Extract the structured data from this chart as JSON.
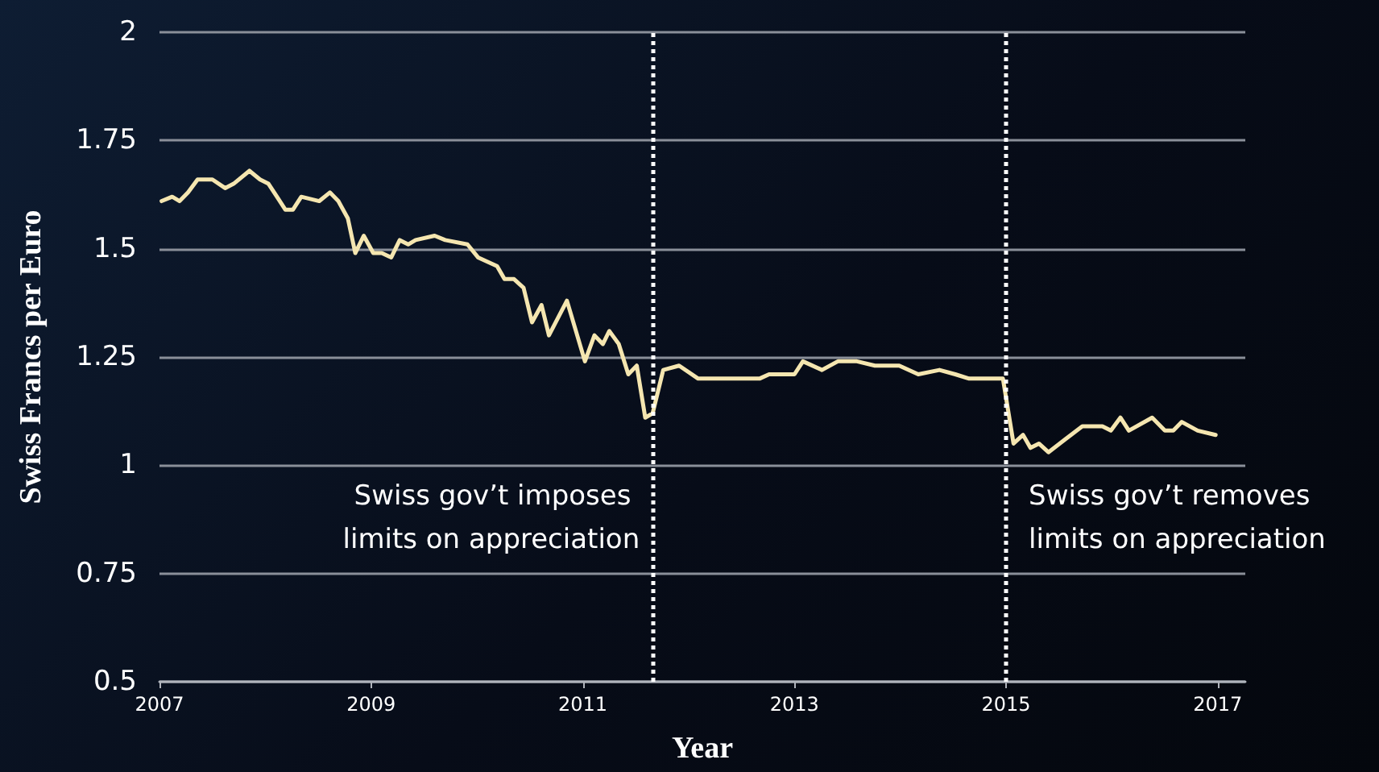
{
  "chart_data": {
    "type": "line",
    "xlabel": "Year",
    "ylabel": "Swiss Francs per Euro",
    "x": [
      2007.02,
      2007.12,
      2007.19,
      2007.27,
      2007.36,
      2007.5,
      2007.62,
      2007.7,
      2007.85,
      2007.95,
      2008.03,
      2008.11,
      2008.19,
      2008.26,
      2008.34,
      2008.51,
      2008.61,
      2008.69,
      2008.78,
      2008.85,
      2008.93,
      2009.02,
      2009.1,
      2009.19,
      2009.27,
      2009.35,
      2009.42,
      2009.6,
      2009.7,
      2009.91,
      2010.01,
      2010.19,
      2010.26,
      2010.35,
      2010.44,
      2010.52,
      2010.61,
      2010.68,
      2010.85,
      2011.02,
      2011.11,
      2011.19,
      2011.25,
      2011.34,
      2011.43,
      2011.51,
      2011.59,
      2011.66,
      2011.76,
      2011.91,
      2012.09,
      2012.24,
      2012.34,
      2012.67,
      2012.76,
      2013.0,
      2013.08,
      2013.26,
      2013.41,
      2013.59,
      2013.76,
      2013.99,
      2014.17,
      2014.37,
      2014.52,
      2014.65,
      2014.83,
      2014.97,
      2015.07,
      2015.16,
      2015.23,
      2015.31,
      2015.4,
      2015.56,
      2015.72,
      2015.82,
      2015.91,
      2015.99,
      2016.08,
      2016.16,
      2016.38,
      2016.5,
      2016.58,
      2016.66,
      2016.81,
      2016.98
    ],
    "series": [
      {
        "color": "#f5e6b0",
        "values": [
          1.61,
          1.62,
          1.61,
          1.63,
          1.66,
          1.66,
          1.64,
          1.65,
          1.68,
          1.66,
          1.65,
          1.62,
          1.59,
          1.59,
          1.62,
          1.61,
          1.63,
          1.61,
          1.57,
          1.49,
          1.53,
          1.49,
          1.49,
          1.48,
          1.52,
          1.51,
          1.52,
          1.53,
          1.52,
          1.51,
          1.48,
          1.46,
          1.43,
          1.43,
          1.41,
          1.33,
          1.37,
          1.3,
          1.38,
          1.24,
          1.3,
          1.28,
          1.31,
          1.28,
          1.21,
          1.23,
          1.11,
          1.12,
          1.22,
          1.23,
          1.2,
          1.2,
          1.2,
          1.2,
          1.21,
          1.21,
          1.24,
          1.22,
          1.24,
          1.24,
          1.23,
          1.23,
          1.21,
          1.22,
          1.21,
          1.2,
          1.2,
          1.2,
          1.05,
          1.07,
          1.04,
          1.05,
          1.03,
          1.06,
          1.09,
          1.09,
          1.09,
          1.08,
          1.11,
          1.08,
          1.11,
          1.08,
          1.08,
          1.1,
          1.08,
          1.07
        ]
      }
    ],
    "xlim": [
      2007,
      2017.26
    ],
    "xticks": [
      2007,
      2009,
      2011,
      2013,
      2015,
      2017
    ],
    "ylim": [
      0.5,
      2
    ],
    "yticks": [
      0.5,
      0.75,
      1,
      1.25,
      1.5,
      1.75,
      2
    ],
    "grid": "y",
    "marker": "none",
    "line_style": "solid",
    "ref_lines": [
      {
        "axis": "x",
        "value": 2011.66,
        "label": "Swiss gov’t imposes limits on appreciation",
        "color": "#ffffff",
        "line_style": "dotted"
      },
      {
        "axis": "x",
        "value": 2015.0,
        "label": "Swiss gov’t removes limits on appreciation",
        "color": "#ffffff",
        "line_style": "dotted"
      }
    ]
  }
}
